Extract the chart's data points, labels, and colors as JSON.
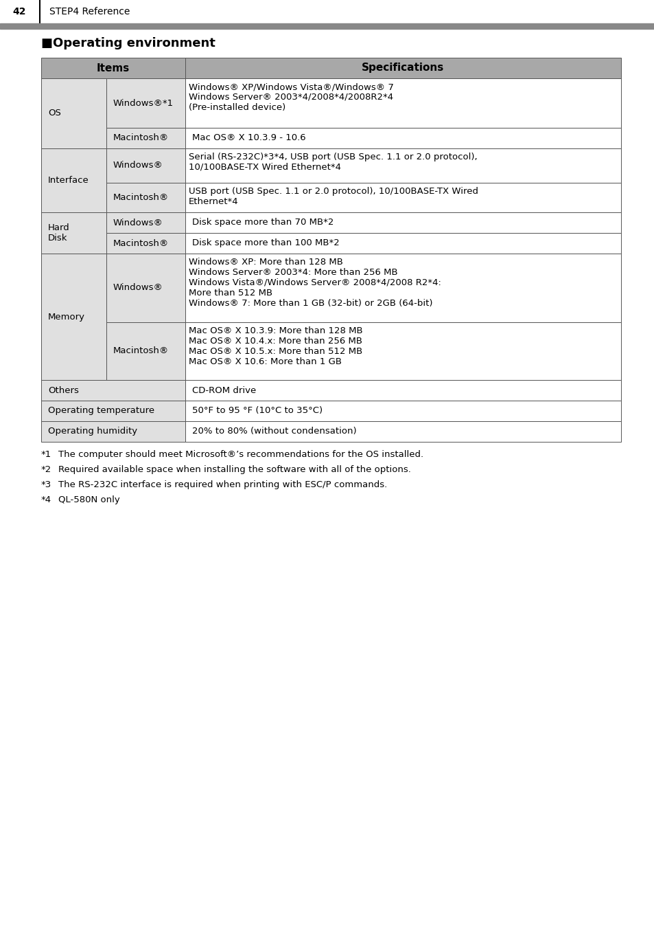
{
  "page_number": "42",
  "header_text": "STEP4 Reference",
  "section_title": "■Operating environment",
  "header_bg": "#a8a8a8",
  "cell_bg": "#e0e0e0",
  "white": "#ffffff",
  "border_color": "#555555",
  "footnotes": [
    [
      "*1",
      "The computer should meet Microsoft®’s recommendations for the OS installed."
    ],
    [
      "*2",
      "Required available space when installing the software with all of the options."
    ],
    [
      "*3",
      "The RS-232C interface is required when printing with ESC/P commands."
    ],
    [
      "*4",
      "QL-580N only"
    ]
  ]
}
